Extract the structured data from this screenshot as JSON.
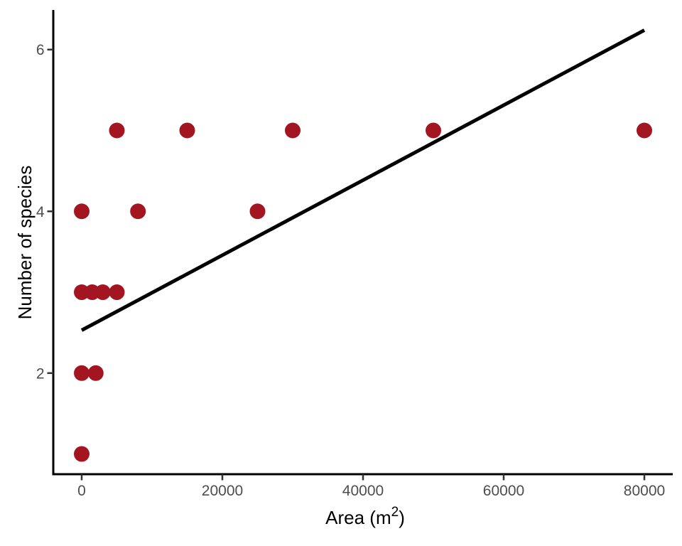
{
  "chart_data": {
    "type": "scatter",
    "title": "",
    "xlabel": {
      "main": "Area (m",
      "sup": "2",
      "close": ")"
    },
    "ylabel": "Number of species",
    "x_ticks": [
      0,
      20000,
      40000,
      60000,
      80000
    ],
    "y_ticks": [
      2,
      4,
      6
    ],
    "xlim": [
      -4040,
      84040
    ],
    "ylim": [
      0.75,
      6.49
    ],
    "grid": "off",
    "legend": "none",
    "points": [
      {
        "x": 0,
        "y": 1
      },
      {
        "x": 0,
        "y": 2
      },
      {
        "x": 2000,
        "y": 2
      },
      {
        "x": 0,
        "y": 3
      },
      {
        "x": 1500,
        "y": 3
      },
      {
        "x": 3000,
        "y": 3
      },
      {
        "x": 5000,
        "y": 3
      },
      {
        "x": 0,
        "y": 4
      },
      {
        "x": 8000,
        "y": 4
      },
      {
        "x": 25000,
        "y": 4
      },
      {
        "x": 5000,
        "y": 5
      },
      {
        "x": 15000,
        "y": 5
      },
      {
        "x": 30000,
        "y": 5
      },
      {
        "x": 50000,
        "y": 5
      },
      {
        "x": 80000,
        "y": 5
      }
    ],
    "trend_line": {
      "x1": 0,
      "y1": 2.53,
      "x2": 80000,
      "y2": 6.24
    },
    "colors": {
      "point": "#A31621",
      "trend_line": "#000000",
      "axis_line": "#000000",
      "tick_mark": "#333333",
      "tick_label": "#4D4D4D",
      "axis_title": "#000000",
      "background": "#FFFFFF"
    }
  }
}
